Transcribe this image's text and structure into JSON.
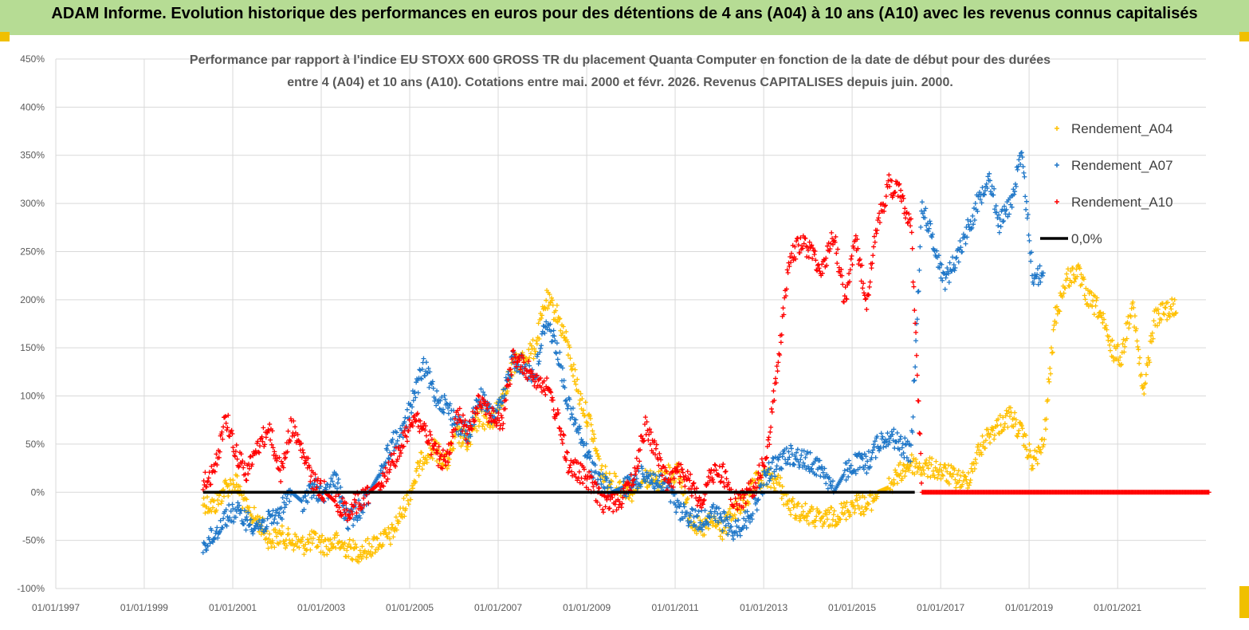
{
  "banner": {
    "title": "ADAM Informe. Evolution historique des performances en euros pour des détentions de 4 ans (A04) à 10 ans (A10) avec les revenus connus capitalisés"
  },
  "colors": {
    "banner_bg": "#b6dc94",
    "series_A04": "#ffc000",
    "series_A07": "#1f77c8",
    "series_A10": "#ff0000",
    "zero_line": "#000000",
    "grid": "#d9d9d9"
  },
  "chart_data": {
    "type": "scatter",
    "title_lines": [
      "Performance par rapport à l'indice EU STOXX 600 GROSS TR  du placement Quanta Computer  en fonction de la date de début pour des durées",
      "entre 4 (A04) et 10 ans (A10). Cotations entre mai. 2000 et févr. 2026. Revenus CAPITALISES depuis juin. 2000."
    ],
    "xlabel": "",
    "ylabel": "",
    "x_range": [
      "1997-01-01",
      "2022-12-31"
    ],
    "ylim": [
      -100,
      450
    ],
    "y_ticks": [
      "-100%",
      "-50%",
      "0%",
      "50%",
      "100%",
      "150%",
      "200%",
      "250%",
      "300%",
      "350%",
      "400%",
      "450%"
    ],
    "x_ticks": [
      "01/01/1997",
      "01/01/1999",
      "01/01/2001",
      "01/01/2003",
      "01/01/2005",
      "01/01/2007",
      "01/01/2009",
      "01/01/2011",
      "01/01/2013",
      "01/01/2015",
      "01/01/2017",
      "01/01/2019",
      "01/01/2021"
    ],
    "grid": "horizontal",
    "legend_position": "top-right",
    "legend": [
      "Rendement_A04",
      "Rendement_A07",
      "Rendement_A10",
      "0,0%"
    ],
    "series": [
      {
        "name": "Rendement_A04",
        "x": [
          "2000-05-01",
          "2000-08-01",
          "2000-11-01",
          "2001-02-01",
          "2001-05-01",
          "2001-08-01",
          "2001-11-01",
          "2002-02-01",
          "2002-05-01",
          "2002-08-01",
          "2002-11-01",
          "2003-02-01",
          "2003-05-01",
          "2003-08-01",
          "2003-11-01",
          "2004-02-01",
          "2004-05-01",
          "2004-08-01",
          "2004-11-01",
          "2005-02-01",
          "2005-05-01",
          "2005-08-01",
          "2005-11-01",
          "2006-02-01",
          "2006-05-01",
          "2006-08-01",
          "2006-11-01",
          "2007-02-01",
          "2007-05-01",
          "2007-08-01",
          "2007-11-01",
          "2008-02-01",
          "2008-05-01",
          "2008-08-01",
          "2008-11-01",
          "2009-02-01",
          "2009-05-01",
          "2009-08-01",
          "2009-11-01",
          "2010-02-01",
          "2010-05-01",
          "2010-08-01",
          "2010-11-01",
          "2011-02-01",
          "2011-05-01",
          "2011-08-01",
          "2011-11-01",
          "2012-02-01",
          "2012-05-01",
          "2012-08-01",
          "2012-11-01",
          "2013-02-01",
          "2013-05-01",
          "2013-08-01",
          "2013-11-01",
          "2014-02-01",
          "2014-05-01",
          "2014-08-01",
          "2014-11-01",
          "2015-02-01",
          "2015-05-01",
          "2015-08-01",
          "2015-11-01",
          "2016-02-01",
          "2016-05-01",
          "2016-08-01",
          "2016-11-01",
          "2017-02-01",
          "2017-05-01",
          "2017-08-01",
          "2017-11-01",
          "2018-02-01",
          "2018-05-01",
          "2018-08-01",
          "2018-11-01",
          "2019-02-01",
          "2019-05-01",
          "2019-08-01",
          "2019-11-01",
          "2020-02-01",
          "2020-05-01",
          "2020-08-01",
          "2020-11-01",
          "2021-02-01",
          "2021-05-01",
          "2021-08-01",
          "2021-11-01",
          "2022-02-01"
        ],
        "values": [
          -10,
          -15,
          5,
          10,
          -20,
          -30,
          -50,
          -45,
          -50,
          -55,
          -50,
          -55,
          -52,
          -58,
          -62,
          -58,
          -50,
          -45,
          -20,
          10,
          40,
          45,
          30,
          60,
          50,
          80,
          70,
          100,
          130,
          140,
          150,
          200,
          185,
          150,
          100,
          70,
          20,
          10,
          5,
          0,
          15,
          10,
          20,
          20,
          -25,
          -40,
          -30,
          -40,
          -20,
          -10,
          10,
          15,
          10,
          -15,
          -20,
          -25,
          -30,
          -25,
          -20,
          -10,
          -15,
          0,
          5,
          20,
          30,
          25,
          25,
          20,
          15,
          10,
          40,
          60,
          70,
          80,
          60,
          30,
          50,
          180,
          220,
          230,
          200,
          190,
          150,
          140,
          200,
          100,
          180,
          190
        ]
      },
      {
        "name": "Rendement_A07",
        "x": [
          "2000-05-01",
          "2000-08-01",
          "2000-11-01",
          "2001-02-01",
          "2001-05-01",
          "2001-08-01",
          "2001-11-01",
          "2002-02-01",
          "2002-05-01",
          "2002-08-01",
          "2002-11-01",
          "2003-02-01",
          "2003-05-01",
          "2003-08-01",
          "2003-11-01",
          "2004-02-01",
          "2004-05-01",
          "2004-08-01",
          "2004-11-01",
          "2005-02-01",
          "2005-05-01",
          "2005-08-01",
          "2005-11-01",
          "2006-02-01",
          "2006-05-01",
          "2006-08-01",
          "2006-11-01",
          "2007-02-01",
          "2007-05-01",
          "2007-08-01",
          "2007-11-01",
          "2008-02-01",
          "2008-05-01",
          "2008-08-01",
          "2008-11-01",
          "2009-02-01",
          "2009-05-01",
          "2009-08-01",
          "2009-11-01",
          "2010-02-01",
          "2010-05-01",
          "2010-08-01",
          "2010-11-01",
          "2011-02-01",
          "2011-05-01",
          "2011-08-01",
          "2011-11-01",
          "2012-02-01",
          "2012-05-01",
          "2012-08-01",
          "2012-11-01",
          "2013-02-01",
          "2013-05-01",
          "2013-08-01",
          "2013-11-01",
          "2014-02-01",
          "2014-05-01",
          "2014-08-01",
          "2014-11-01",
          "2015-02-01",
          "2015-05-01",
          "2015-08-01",
          "2015-11-01",
          "2016-02-01",
          "2016-05-01",
          "2016-08-01",
          "2016-11-01",
          "2017-02-01",
          "2017-05-01",
          "2017-08-01",
          "2017-11-01",
          "2018-02-01",
          "2018-05-01",
          "2018-08-01",
          "2018-11-01",
          "2019-02-01"
        ],
        "values": [
          -55,
          -45,
          -25,
          -20,
          -30,
          -35,
          -30,
          -20,
          0,
          -10,
          5,
          -5,
          15,
          -30,
          -20,
          0,
          20,
          50,
          60,
          100,
          130,
          100,
          90,
          70,
          60,
          100,
          80,
          90,
          140,
          130,
          120,
          180,
          150,
          90,
          60,
          30,
          10,
          0,
          5,
          10,
          20,
          10,
          5,
          -20,
          -25,
          -30,
          -20,
          -30,
          -40,
          -30,
          -10,
          20,
          30,
          40,
          35,
          30,
          25,
          0,
          20,
          30,
          30,
          50,
          60,
          50,
          40,
          300,
          260,
          220,
          240,
          270,
          300,
          330,
          280,
          300,
          350,
          225
        ]
      },
      {
        "name": "Rendement_A10",
        "x": [
          "2000-05-01",
          "2000-08-01",
          "2000-11-01",
          "2001-02-01",
          "2001-05-01",
          "2001-08-01",
          "2001-11-01",
          "2002-02-01",
          "2002-05-01",
          "2002-08-01",
          "2002-11-01",
          "2003-02-01",
          "2003-05-01",
          "2003-08-01",
          "2003-11-01",
          "2004-02-01",
          "2004-05-01",
          "2004-08-01",
          "2004-11-01",
          "2005-02-01",
          "2005-05-01",
          "2005-08-01",
          "2005-11-01",
          "2006-02-01",
          "2006-05-01",
          "2006-08-01",
          "2006-11-01",
          "2007-02-01",
          "2007-05-01",
          "2007-08-01",
          "2007-11-01",
          "2008-02-01",
          "2008-05-01",
          "2008-08-01",
          "2008-11-01",
          "2009-02-01",
          "2009-05-01",
          "2009-08-01",
          "2009-11-01",
          "2010-02-01",
          "2010-05-01",
          "2010-08-01",
          "2010-11-01",
          "2011-02-01",
          "2011-05-01",
          "2011-08-01",
          "2011-11-01",
          "2012-02-01",
          "2012-05-01",
          "2012-08-01",
          "2012-11-01",
          "2013-02-01",
          "2013-05-01",
          "2013-08-01",
          "2013-11-01",
          "2014-02-01",
          "2014-05-01",
          "2014-08-01",
          "2014-11-01",
          "2015-02-01",
          "2015-05-01",
          "2015-08-01",
          "2015-11-01",
          "2016-02-01",
          "2016-05-01",
          "2016-08-01",
          "2016-11-01",
          "2017-02-01",
          "2017-05-01",
          "2017-08-01",
          "2017-11-01",
          "2018-02-01",
          "2018-05-01",
          "2018-08-01",
          "2018-11-01",
          "2019-02-01",
          "2019-05-01",
          "2019-08-01",
          "2019-11-01",
          "2020-02-01",
          "2020-05-01",
          "2020-08-01",
          "2020-11-01",
          "2021-02-01",
          "2021-05-01",
          "2021-08-01",
          "2021-11-01",
          "2022-02-01",
          "2022-05-01",
          "2022-08-01",
          "2022-11-01"
        ],
        "values": [
          10,
          20,
          80,
          40,
          20,
          50,
          65,
          20,
          70,
          40,
          10,
          0,
          -10,
          -20,
          -10,
          0,
          10,
          30,
          50,
          80,
          65,
          40,
          30,
          80,
          60,
          100,
          80,
          70,
          140,
          130,
          120,
          110,
          80,
          30,
          20,
          10,
          -10,
          -10,
          -5,
          20,
          70,
          40,
          10,
          20,
          10,
          -10,
          20,
          20,
          -10,
          -5,
          10,
          40,
          140,
          240,
          260,
          250,
          230,
          270,
          200,
          260,
          200,
          280,
          320,
          310,
          280,
          0,
          0,
          0,
          0,
          0,
          0,
          0,
          0,
          0,
          0,
          0,
          0,
          0,
          0,
          0,
          0,
          0,
          0,
          0,
          0,
          0,
          0,
          0,
          0,
          0,
          0
        ]
      }
    ]
  }
}
